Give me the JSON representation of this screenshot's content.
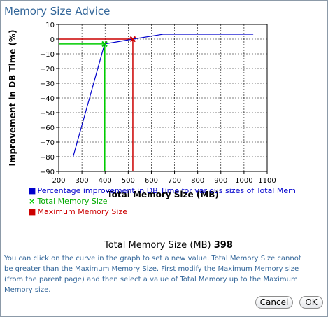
{
  "dialog": {
    "title": "Memory Size Advice",
    "current_label": "Total Memory Size (MB)",
    "current_value": "398",
    "help_text": "You can click on the curve in the graph to set a new value. Total Memory Size cannot be greater than the Maximum Memory Size. First modify the Maximum Memory size (from the parent page) and then select a value of Total Memory up to the Maximum Memory size."
  },
  "buttons": {
    "cancel": "Cancel",
    "ok": "OK"
  },
  "legend": [
    {
      "label": "Percentage improvement in DB Time for various sizes of Total Mem",
      "color": "#0000cc",
      "marker": "square"
    },
    {
      "label": "Total Memory Size",
      "color": "#00cc00",
      "marker": "x"
    },
    {
      "label": "Maximum Memory Size",
      "color": "#cc0000",
      "marker": "square"
    }
  ],
  "chart_data": {
    "type": "line",
    "xlabel": "Total Memory Size (MB)",
    "ylabel": "Improvement in DB Time (%)",
    "xlim": [
      200,
      1100
    ],
    "ylim": [
      -90,
      10
    ],
    "x_ticks": [
      200,
      300,
      400,
      500,
      600,
      700,
      800,
      900,
      1000,
      1100
    ],
    "y_ticks": [
      10,
      0,
      -10,
      -20,
      -30,
      -40,
      -50,
      -60,
      -70,
      -80,
      -90
    ],
    "grid": true,
    "series": [
      {
        "name": "Percentage improvement in DB Time for various sizes of Total Mem",
        "color": "#0000cc",
        "x": [
          262,
          398,
          520,
          650,
          1040
        ],
        "y": [
          -80,
          -3.3,
          0,
          3.3,
          3.3
        ]
      }
    ],
    "markers": [
      {
        "name": "Total Memory Size",
        "x": 398,
        "y": -3.3,
        "color": "#00cc00",
        "shape": "x"
      },
      {
        "name": "Maximum Memory Size",
        "x": 520,
        "y": 0,
        "color": "#cc0000",
        "shape": "x"
      }
    ]
  }
}
